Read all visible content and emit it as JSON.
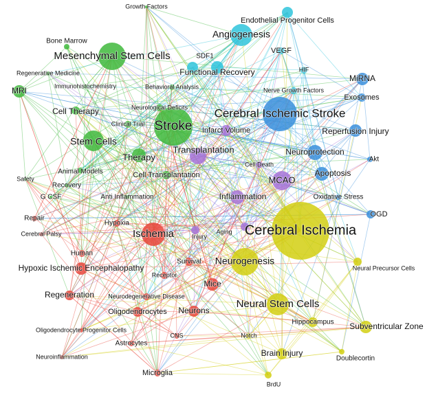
{
  "clusters": [
    {
      "color": "#3fb83c",
      "nodes": [
        {
          "label": "Growth Factors"
        },
        {
          "label": "Bone Marrow"
        },
        {
          "label": "Mesenchymal Stem Cells"
        },
        {
          "label": "Regenerative Medicine"
        },
        {
          "label": "MRI"
        },
        {
          "label": "Immunohistochemistry"
        },
        {
          "label": "Cell Therapy"
        },
        {
          "label": "Neurological Deficits"
        },
        {
          "label": "Clinical Trial"
        },
        {
          "label": "Stroke"
        },
        {
          "label": "Stem Cells"
        },
        {
          "label": "Therapy"
        },
        {
          "label": "Animal Models"
        },
        {
          "label": "Safety"
        },
        {
          "label": "Recovery"
        },
        {
          "label": "Cell Transplantation"
        },
        {
          "label": "G CSF"
        },
        {
          "label": "Anti Inflammation"
        },
        {
          "label": "Behavioral Analysis"
        }
      ]
    },
    {
      "color": "#2fc4dc",
      "nodes": [
        {
          "label": "Endothelial Progenitor Cells"
        },
        {
          "label": "Angiogenesis"
        },
        {
          "label": "SDF1"
        },
        {
          "label": "VEGF"
        },
        {
          "label": "Functional Recovery"
        },
        {
          "label": "HIF"
        },
        {
          "label": "Nerve Growth Factors"
        }
      ]
    },
    {
      "color": "#3a8fdc",
      "nodes": [
        {
          "label": "MiRNA"
        },
        {
          "label": "Exosomes"
        },
        {
          "label": "Cerebral Ischemic Stroke"
        },
        {
          "label": "Reperfusion Injury"
        },
        {
          "label": "Akt"
        },
        {
          "label": "Neuroprotection"
        },
        {
          "label": "Apoptosis"
        },
        {
          "label": "Oxidative Stress"
        },
        {
          "label": "OGD"
        }
      ]
    },
    {
      "color": "#a673d8",
      "nodes": [
        {
          "label": "Infarct Volume"
        },
        {
          "label": "Transplantation"
        },
        {
          "label": "Cell Death"
        },
        {
          "label": "MCAO"
        },
        {
          "label": "Inflammation"
        },
        {
          "label": "Aging"
        },
        {
          "label": "Injury"
        }
      ]
    },
    {
      "color": "#d2cf12",
      "nodes": [
        {
          "label": "Cerebral Ischemia"
        },
        {
          "label": "Neurogenesis"
        },
        {
          "label": "Neural Precursor Cells"
        },
        {
          "label": "Neural Stem Cells"
        },
        {
          "label": "Hippocampus"
        },
        {
          "label": "Subventricular Zone"
        },
        {
          "label": "Notch"
        },
        {
          "label": "Brain Injury"
        },
        {
          "label": "Doublecortin"
        },
        {
          "label": "BrdU"
        }
      ]
    },
    {
      "color": "#e8473c",
      "nodes": [
        {
          "label": "Repair"
        },
        {
          "label": "Hypoxia"
        },
        {
          "label": "Cerebral Palsy"
        },
        {
          "label": "Ischemia"
        },
        {
          "label": "Human"
        },
        {
          "label": "Survival"
        },
        {
          "label": "Hypoxic Ischemic Encephalopathy"
        },
        {
          "label": "Receptor"
        },
        {
          "label": "Mice"
        },
        {
          "label": "Regeneration"
        },
        {
          "label": "Neurodegenerative Disease"
        },
        {
          "label": "Oligodendrocytes"
        },
        {
          "label": "Neurons"
        },
        {
          "label": "Oligodendrocyte Progenitor Cells"
        },
        {
          "label": "Astrocytes"
        },
        {
          "label": "CNS"
        },
        {
          "label": "Neuroinflammation"
        },
        {
          "label": "Microglia"
        }
      ]
    }
  ]
}
